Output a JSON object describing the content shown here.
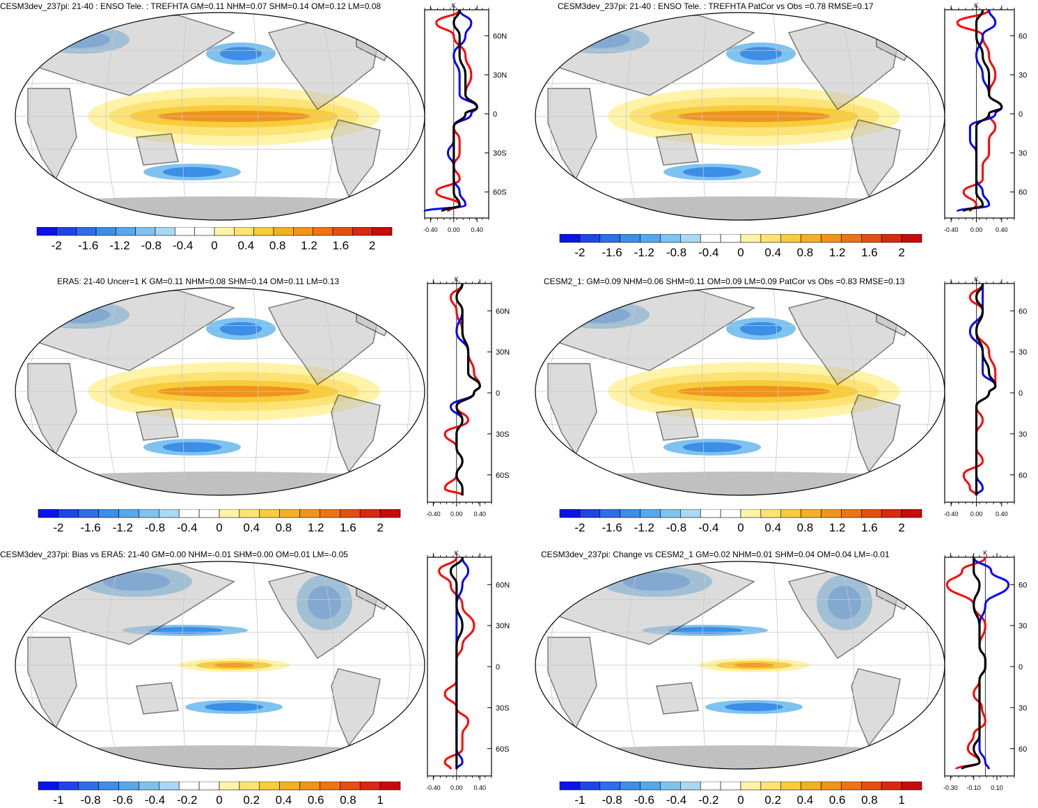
{
  "panels": [
    {
      "id": "p1",
      "title": "CESM3dev_237pi: 21-40 : ENSO Tele. : TREFHTA GM=0.11 NHM=0.07 SHM=0.14 OM=0.12 LM=0.08",
      "colorbar": {
        "labels": [
          "-2",
          "-1.6",
          "-1.2",
          "-0.8",
          "-0.4",
          "0",
          "0.4",
          "0.8",
          "1.2",
          "1.6",
          "2"
        ]
      },
      "zonal": {
        "unit": "K",
        "lat_labels": [
          "60N",
          "30N",
          "0",
          "30S",
          "60S"
        ],
        "x_labels": [
          "-0.40",
          "0.00",
          "0.40"
        ],
        "xlim": [
          -0.5,
          0.6
        ]
      }
    },
    {
      "id": "p2",
      "title": "CESM3dev_237pi: 21-40 : ENSO Tele. : TREFHTA PatCor vs Obs =0.78 RMSE=0.17",
      "colorbar": {
        "labels": [
          "-2",
          "-1.6",
          "-1.2",
          "-0.8",
          "-0.4",
          "0",
          "0.4",
          "0.8",
          "1.2",
          "1.6",
          "2"
        ]
      },
      "zonal": {
        "unit": "K",
        "lat_labels": [
          "60",
          "30",
          "0",
          "30",
          "60"
        ],
        "x_labels": [
          "-0.40",
          "0.00",
          "0.40"
        ],
        "xlim": [
          -0.5,
          0.6
        ]
      }
    },
    {
      "id": "p3",
      "title": "ERA5: 21-40 Uncer=1 K GM=0.11 NHM=0.08 SHM=0.14 OM=0.11 LM=0.13",
      "colorbar": {
        "labels": [
          "-2",
          "-1.6",
          "-1.2",
          "-0.8",
          "-0.4",
          "0",
          "0.4",
          "0.8",
          "1.2",
          "1.6",
          "2"
        ]
      },
      "zonal": {
        "unit": "K",
        "lat_labels": [
          "60N",
          "30N",
          "0",
          "30S",
          "60S"
        ],
        "x_labels": [
          "-0.40",
          "0.00",
          "0.40"
        ],
        "xlim": [
          -0.5,
          0.6
        ]
      }
    },
    {
      "id": "p4",
      "title": "CESM2_1: GM=0.09 NHM=0.06 SHM=0.11 OM=0.09 LM=0.09 PatCor vs Obs =0.83 RMSE=0.13",
      "colorbar": {
        "labels": [
          "-2",
          "-1.6",
          "-1.2",
          "-0.8",
          "-0.4",
          "0",
          "0.4",
          "0.8",
          "1.2",
          "1.6",
          "2"
        ]
      },
      "zonal": {
        "unit": "K",
        "lat_labels": [
          "60",
          "30",
          "0",
          "30",
          "60"
        ],
        "x_labels": [
          "-0.40",
          "0.00",
          "0.40"
        ],
        "xlim": [
          -0.5,
          0.6
        ]
      }
    },
    {
      "id": "p5",
      "title": "CESM3dev_237pi: Bias vs ERA5: 21-40 GM=0.00 NHM=-0.01 SHM=0.00 OM=0.01 LM=-0.05",
      "colorbar": {
        "labels": [
          "-1",
          "-0.8",
          "-0.6",
          "-0.4",
          "-0.2",
          "0",
          "0.2",
          "0.4",
          "0.6",
          "0.8",
          "1"
        ]
      },
      "zonal": {
        "unit": "K",
        "lat_labels": [
          "60N",
          "30N",
          "0",
          "30S",
          "60S"
        ],
        "x_labels": [
          "-0.40",
          "0.00",
          "0.40"
        ],
        "xlim": [
          -0.5,
          0.6
        ]
      }
    },
    {
      "id": "p6",
      "title": "CESM3dev_237pi: Change vs CESM2_1 GM=0.02 NHM=0.01 SHM=0.04 OM=0.04 LM=-0.01",
      "colorbar": {
        "labels": [
          "-1",
          "-0.8",
          "-0.6",
          "-0.4",
          "-0.2",
          "0",
          "0.2",
          "0.4",
          "0.6",
          "0.8",
          "1"
        ]
      },
      "zonal": {
        "unit": "K",
        "lat_labels": [
          "60",
          "30",
          "0",
          "30",
          "60"
        ],
        "x_labels": [
          "-0.30",
          "-0.10",
          "0.10"
        ],
        "xlim": [
          -0.35,
          0.25
        ]
      }
    }
  ],
  "colors": {
    "palette": [
      "#0a14e6",
      "#1e46e6",
      "#2e6ee6",
      "#3c8ee6",
      "#56a8ec",
      "#7ec2f0",
      "#a8d8f4",
      "#ffffff",
      "#ffffff",
      "#fff3a8",
      "#fce373",
      "#f8cc3c",
      "#f4b024",
      "#f09418",
      "#ec7414",
      "#e44e10",
      "#d82810",
      "#c80a0a"
    ],
    "land": "#c0c0c0",
    "model_line": "#ff0000",
    "obs_line": "#0000ff",
    "all_line": "#000000",
    "grid": "#c8c8c8"
  },
  "chart_data": [
    {
      "type": "heatmap",
      "panel": "p1",
      "zonal_series": [
        {
          "color": "red",
          "lat": [
            80,
            70,
            60,
            45,
            30,
            15,
            5,
            0,
            -10,
            -20,
            -30,
            -40,
            -50,
            -60,
            -70,
            -75
          ],
          "values": [
            0.1,
            -0.3,
            0.0,
            0.2,
            0.3,
            0.2,
            0.4,
            0.2,
            0.0,
            0.1,
            0.1,
            0.0,
            0.1,
            -0.3,
            0.1,
            -0.1
          ]
        },
        {
          "color": "blue",
          "lat": [
            80,
            70,
            60,
            45,
            30,
            15,
            5,
            0,
            -10,
            -20,
            -30,
            -40,
            -50,
            -60,
            -70,
            -75
          ],
          "values": [
            0.1,
            0.3,
            0.2,
            0.0,
            0.1,
            0.1,
            0.4,
            0.3,
            0.0,
            0.0,
            -0.1,
            0.0,
            0.0,
            0.1,
            0.2,
            -0.5
          ]
        },
        {
          "color": "black",
          "lat": [
            80,
            70,
            60,
            45,
            30,
            15,
            5,
            0,
            -10,
            -20,
            -30,
            -40,
            -50,
            -60,
            -70,
            -75
          ],
          "values": [
            0.1,
            0.0,
            0.1,
            0.1,
            0.2,
            0.2,
            0.4,
            0.2,
            0.0,
            0.0,
            0.0,
            0.0,
            0.0,
            0.0,
            0.1,
            -0.2
          ]
        }
      ]
    },
    {
      "type": "heatmap",
      "panel": "p2",
      "zonal_series": [
        {
          "color": "red",
          "lat": [
            80,
            70,
            60,
            45,
            30,
            15,
            5,
            0,
            -10,
            -20,
            -30,
            -40,
            -50,
            -60,
            -70,
            -75
          ],
          "values": [
            0.2,
            -0.3,
            0.1,
            0.2,
            0.3,
            0.2,
            0.4,
            0.2,
            0.3,
            0.2,
            0.2,
            0.1,
            0.1,
            -0.2,
            0.0,
            -0.1
          ]
        },
        {
          "color": "blue",
          "lat": [
            80,
            70,
            60,
            45,
            30,
            15,
            5,
            0,
            -10,
            -20,
            -30,
            -40,
            -50,
            -60,
            -70,
            -75
          ],
          "values": [
            0.2,
            0.3,
            0.1,
            0.0,
            0.1,
            0.2,
            0.4,
            0.3,
            -0.1,
            -0.1,
            0.0,
            0.0,
            0.0,
            0.1,
            0.2,
            -0.3
          ]
        },
        {
          "color": "black",
          "lat": [
            80,
            70,
            60,
            45,
            30,
            15,
            5,
            0,
            -10,
            -20,
            -30,
            -40,
            -50,
            -60,
            -70,
            -75
          ],
          "values": [
            0.1,
            0.0,
            0.0,
            0.1,
            0.2,
            0.2,
            0.4,
            0.2,
            0.0,
            0.0,
            0.0,
            0.0,
            0.0,
            0.0,
            0.1,
            -0.2
          ]
        }
      ]
    },
    {
      "type": "heatmap",
      "panel": "p3",
      "zonal_series": [
        {
          "color": "red",
          "lat": [
            80,
            70,
            60,
            45,
            30,
            15,
            5,
            0,
            -10,
            -20,
            -30,
            -40,
            -50,
            -60,
            -70,
            -75
          ],
          "values": [
            0.1,
            -0.1,
            0.0,
            0.1,
            0.2,
            0.3,
            0.4,
            0.3,
            0.0,
            0.2,
            -0.2,
            0.0,
            0.1,
            0.0,
            -0.2,
            0.1
          ]
        },
        {
          "color": "blue",
          "lat": [
            80,
            70,
            60,
            45,
            30,
            15,
            5,
            0,
            -10,
            -20,
            -30,
            -40,
            -50,
            -60,
            -70,
            -75
          ],
          "values": [
            0.1,
            0.0,
            0.1,
            0.0,
            0.2,
            0.2,
            0.4,
            0.3,
            -0.1,
            0.1,
            0.0,
            0.0,
            0.1,
            0.0,
            0.1,
            0.1
          ]
        },
        {
          "color": "black",
          "lat": [
            80,
            70,
            60,
            45,
            30,
            15,
            5,
            0,
            -10,
            -20,
            -30,
            -40,
            -50,
            -60,
            -70,
            -75
          ],
          "values": [
            0.1,
            0.0,
            0.1,
            0.1,
            0.2,
            0.2,
            0.4,
            0.3,
            0.0,
            0.1,
            0.0,
            0.0,
            0.1,
            0.0,
            0.1,
            0.1
          ]
        }
      ]
    },
    {
      "type": "heatmap",
      "panel": "p4",
      "zonal_series": [
        {
          "color": "red",
          "lat": [
            80,
            70,
            60,
            45,
            30,
            15,
            5,
            0,
            -10,
            -20,
            -30,
            -40,
            -50,
            -60,
            -70,
            -75
          ],
          "values": [
            0.1,
            -0.1,
            0.1,
            0.0,
            0.2,
            0.3,
            0.3,
            0.2,
            0.0,
            0.1,
            0.0,
            0.0,
            0.1,
            -0.2,
            -0.1,
            0.0
          ]
        },
        {
          "color": "blue",
          "lat": [
            80,
            70,
            60,
            45,
            30,
            15,
            5,
            0,
            -10,
            -20,
            -30,
            -40,
            -50,
            -60,
            -70,
            -75
          ],
          "values": [
            0.1,
            0.1,
            0.1,
            -0.1,
            0.1,
            0.1,
            0.3,
            0.2,
            0.0,
            0.0,
            0.0,
            0.0,
            0.0,
            0.0,
            0.1,
            0.0
          ]
        },
        {
          "color": "black",
          "lat": [
            80,
            70,
            60,
            45,
            30,
            15,
            5,
            0,
            -10,
            -20,
            -30,
            -40,
            -50,
            -60,
            -70,
            -75
          ],
          "values": [
            0.1,
            0.0,
            0.1,
            0.0,
            0.1,
            0.2,
            0.3,
            0.2,
            0.0,
            0.0,
            0.0,
            0.0,
            0.0,
            0.0,
            0.0,
            0.0
          ]
        }
      ]
    },
    {
      "type": "heatmap",
      "panel": "p5",
      "zonal_series": [
        {
          "color": "red",
          "lat": [
            80,
            70,
            60,
            45,
            30,
            15,
            5,
            0,
            -10,
            -20,
            -30,
            -40,
            -50,
            -60,
            -70,
            -75
          ],
          "values": [
            0.0,
            -0.3,
            -0.1,
            0.1,
            0.3,
            0.1,
            0.0,
            0.0,
            0.0,
            -0.2,
            0.0,
            0.2,
            0.1,
            0.1,
            -0.2,
            -0.1
          ]
        },
        {
          "color": "blue",
          "lat": [
            80,
            70,
            60,
            45,
            30,
            15,
            5,
            0,
            -10,
            -20,
            -30,
            -40,
            -50,
            -60,
            -70,
            -75
          ],
          "values": [
            0.1,
            0.2,
            0.1,
            0.0,
            0.0,
            0.0,
            0.0,
            0.0,
            0.0,
            0.0,
            0.0,
            0.0,
            0.0,
            0.0,
            0.1,
            0.0
          ]
        },
        {
          "color": "black",
          "lat": [
            80,
            70,
            60,
            45,
            30,
            15,
            5,
            0,
            -10,
            -20,
            -30,
            -40,
            -50,
            -60,
            -70,
            -75
          ],
          "values": [
            0.1,
            -0.1,
            0.0,
            0.0,
            0.1,
            0.0,
            0.0,
            0.0,
            0.0,
            0.0,
            0.0,
            0.0,
            0.0,
            0.0,
            0.0,
            0.0
          ]
        }
      ]
    },
    {
      "type": "heatmap",
      "panel": "p6",
      "zonal_series": [
        {
          "color": "red",
          "lat": [
            80,
            70,
            60,
            45,
            30,
            15,
            5,
            0,
            -10,
            -20,
            -30,
            -40,
            -50,
            -60,
            -70,
            -75
          ],
          "values": [
            0.0,
            -0.2,
            -0.33,
            -0.1,
            0.0,
            -0.05,
            0.0,
            0.0,
            -0.05,
            -0.1,
            -0.03,
            0.0,
            -0.1,
            -0.15,
            -0.05,
            -0.25
          ]
        },
        {
          "color": "blue",
          "lat": [
            80,
            70,
            60,
            45,
            30,
            15,
            5,
            0,
            -10,
            -20,
            -30,
            -40,
            -50,
            -60,
            -70,
            -75
          ],
          "values": [
            -0.1,
            0.05,
            0.2,
            0.0,
            -0.05,
            -0.05,
            0.0,
            0.0,
            -0.05,
            -0.05,
            -0.05,
            -0.05,
            -0.05,
            -0.05,
            0.0,
            0.03
          ]
        },
        {
          "color": "black",
          "lat": [
            80,
            70,
            60,
            45,
            30,
            15,
            5,
            0,
            -10,
            -20,
            -30,
            -40,
            -50,
            -60,
            -70,
            -75
          ],
          "values": [
            -0.1,
            -0.1,
            -0.05,
            -0.1,
            -0.05,
            -0.05,
            0.0,
            0.0,
            -0.05,
            -0.05,
            -0.05,
            -0.05,
            -0.05,
            -0.1,
            -0.05,
            -0.2
          ]
        }
      ]
    }
  ]
}
